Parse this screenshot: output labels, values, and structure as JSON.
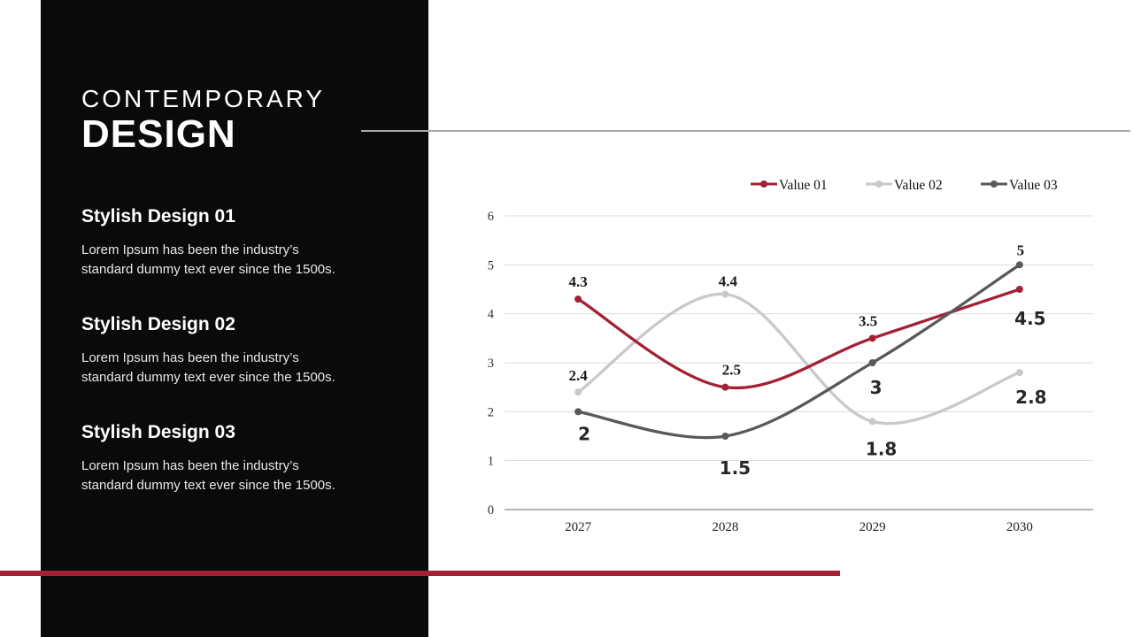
{
  "slide": {
    "background": "#ffffff",
    "accent_color": "#a32036",
    "divider_color": "#a9a9a9",
    "panel": {
      "background": "#0a0a0a",
      "title_line1": "CONTEMPORARY",
      "title_line2": "DESIGN",
      "sections": [
        {
          "heading": "Stylish Design 01",
          "body": "Lorem Ipsum has been the industry’s standard dummy text ever since the 1500s."
        },
        {
          "heading": "Stylish Design 02",
          "body": "Lorem Ipsum has been the industry’s standard dummy text ever since the 1500s."
        },
        {
          "heading": "Stylish Design 03",
          "body": "Lorem Ipsum has been the industry’s standard dummy text ever since the 1500s."
        }
      ]
    }
  },
  "chart_data": {
    "type": "line",
    "smooth": true,
    "grid": true,
    "legend_position": "top",
    "categories": [
      "2027",
      "2028",
      "2029",
      "2030"
    ],
    "ylim": [
      0,
      6
    ],
    "yticks": [
      0,
      1,
      2,
      3,
      4,
      5,
      6
    ],
    "gridline_color": "#dcdcdc",
    "axis_color": "#8a8a8a",
    "draw_order": [
      1,
      0,
      2
    ],
    "series": [
      {
        "name": "Value 01",
        "color": "#a32036",
        "values": [
          4.3,
          2.5,
          3.5,
          4.5
        ],
        "labels": [
          {
            "text": "4.3",
            "dx": 0,
            "dy": -14,
            "font": "serif"
          },
          {
            "text": "2.5",
            "dx": 7,
            "dy": -14,
            "font": "serif"
          },
          {
            "text": "3.5",
            "dx": -5,
            "dy": -14,
            "font": "serif"
          },
          {
            "text": "4.5",
            "dx": 12,
            "dy": 40,
            "font": "sans"
          }
        ]
      },
      {
        "name": "Value 02",
        "color": "#c9c9c9",
        "values": [
          2.4,
          4.4,
          1.8,
          2.8
        ],
        "labels": [
          {
            "text": "2.4",
            "dx": 0,
            "dy": -13,
            "font": "serif"
          },
          {
            "text": "4.4",
            "dx": 3,
            "dy": -9,
            "font": "serif"
          },
          {
            "text": "1.8",
            "dx": 10,
            "dy": 38,
            "font": "sans"
          },
          {
            "text": "2.8",
            "dx": 13,
            "dy": 35,
            "font": "sans"
          }
        ]
      },
      {
        "name": "Value 03",
        "color": "#595959",
        "values": [
          2,
          1.5,
          3,
          5
        ],
        "labels": [
          {
            "text": "2",
            "dx": 7,
            "dy": 32,
            "font": "sans"
          },
          {
            "text": "1.5",
            "dx": 11,
            "dy": 43,
            "font": "sans"
          },
          {
            "text": "3",
            "dx": 4,
            "dy": 35,
            "font": "sans"
          },
          {
            "text": "5",
            "dx": 1,
            "dy": -11,
            "font": "serif"
          }
        ]
      }
    ]
  }
}
